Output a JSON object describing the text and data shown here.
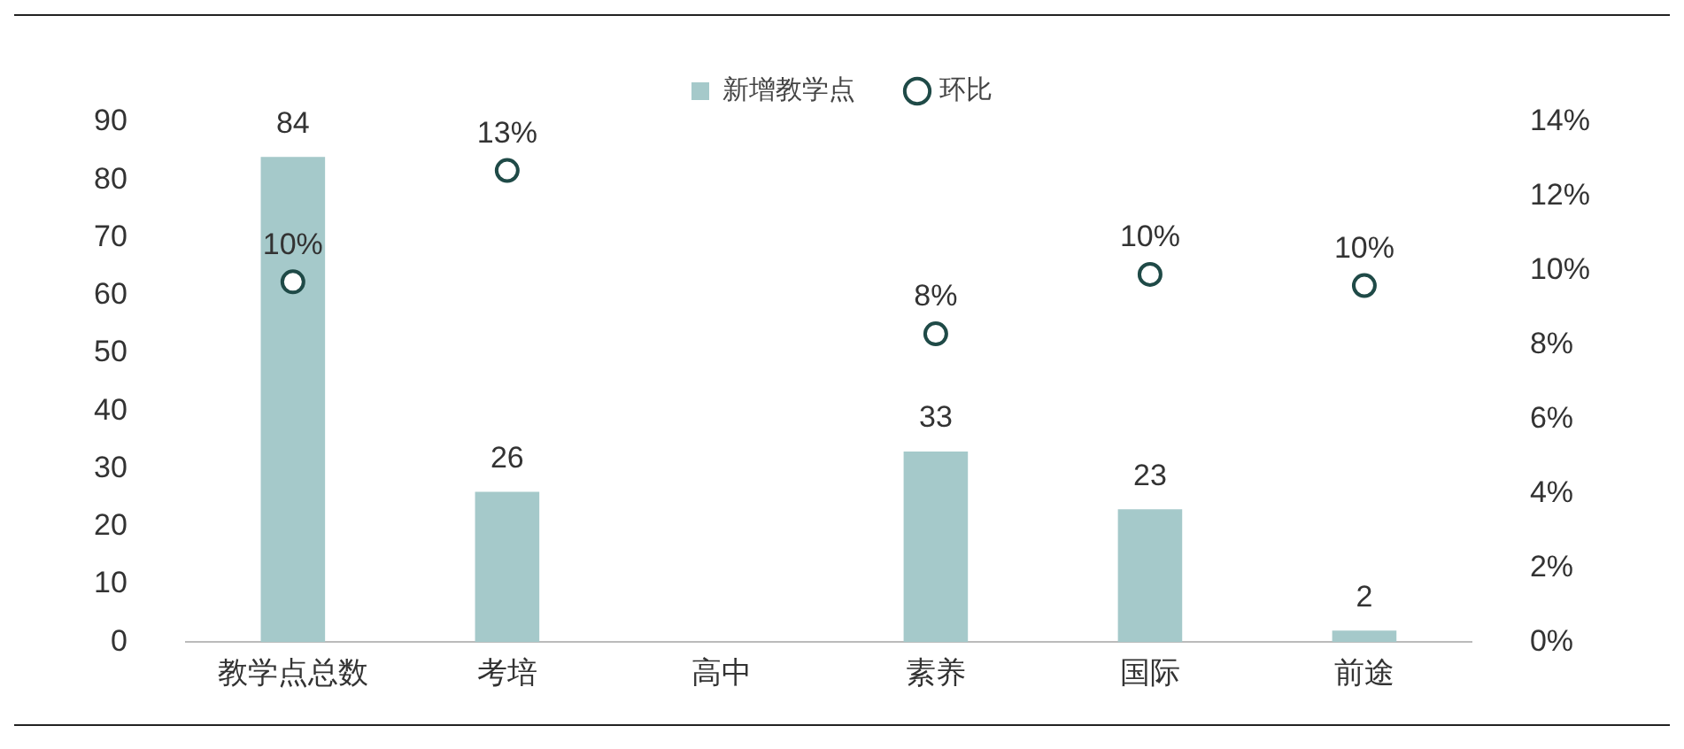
{
  "chart_data": {
    "type": "bar",
    "categories": [
      "教学点总数",
      "考培",
      "高中",
      "素养",
      "国际",
      "前途"
    ],
    "series": [
      {
        "name": "新增教学点",
        "color": "#a5c9ca",
        "values": [
          84,
          26,
          null,
          33,
          23,
          2
        ],
        "value_labels": [
          "84",
          "26",
          null,
          "33",
          "23",
          "2"
        ]
      },
      {
        "name": "环比",
        "type": "scatter",
        "axis": "y2",
        "marker": "circle",
        "color": "#1f4a47",
        "values": [
          9.7,
          12.7,
          null,
          8.3,
          9.9,
          9.6
        ],
        "value_labels": [
          "10%",
          "13%",
          null,
          "8%",
          "10%",
          "10%"
        ]
      }
    ],
    "ylim": [
      0,
      90
    ],
    "yticks": [
      0,
      10,
      20,
      30,
      40,
      50,
      60,
      70,
      80,
      90
    ],
    "y2lim": [
      0,
      14
    ],
    "y2ticks": [
      {
        "value": 0,
        "label": "0%"
      },
      {
        "value": 2,
        "label": "2%"
      },
      {
        "value": 4,
        "label": "4%"
      },
      {
        "value": 6,
        "label": "6%"
      },
      {
        "value": 8,
        "label": "8%"
      },
      {
        "value": 10,
        "label": "10%"
      },
      {
        "value": 12,
        "label": "12%"
      },
      {
        "value": 14,
        "label": "14%"
      }
    ],
    "grid": false,
    "legend": "top"
  }
}
